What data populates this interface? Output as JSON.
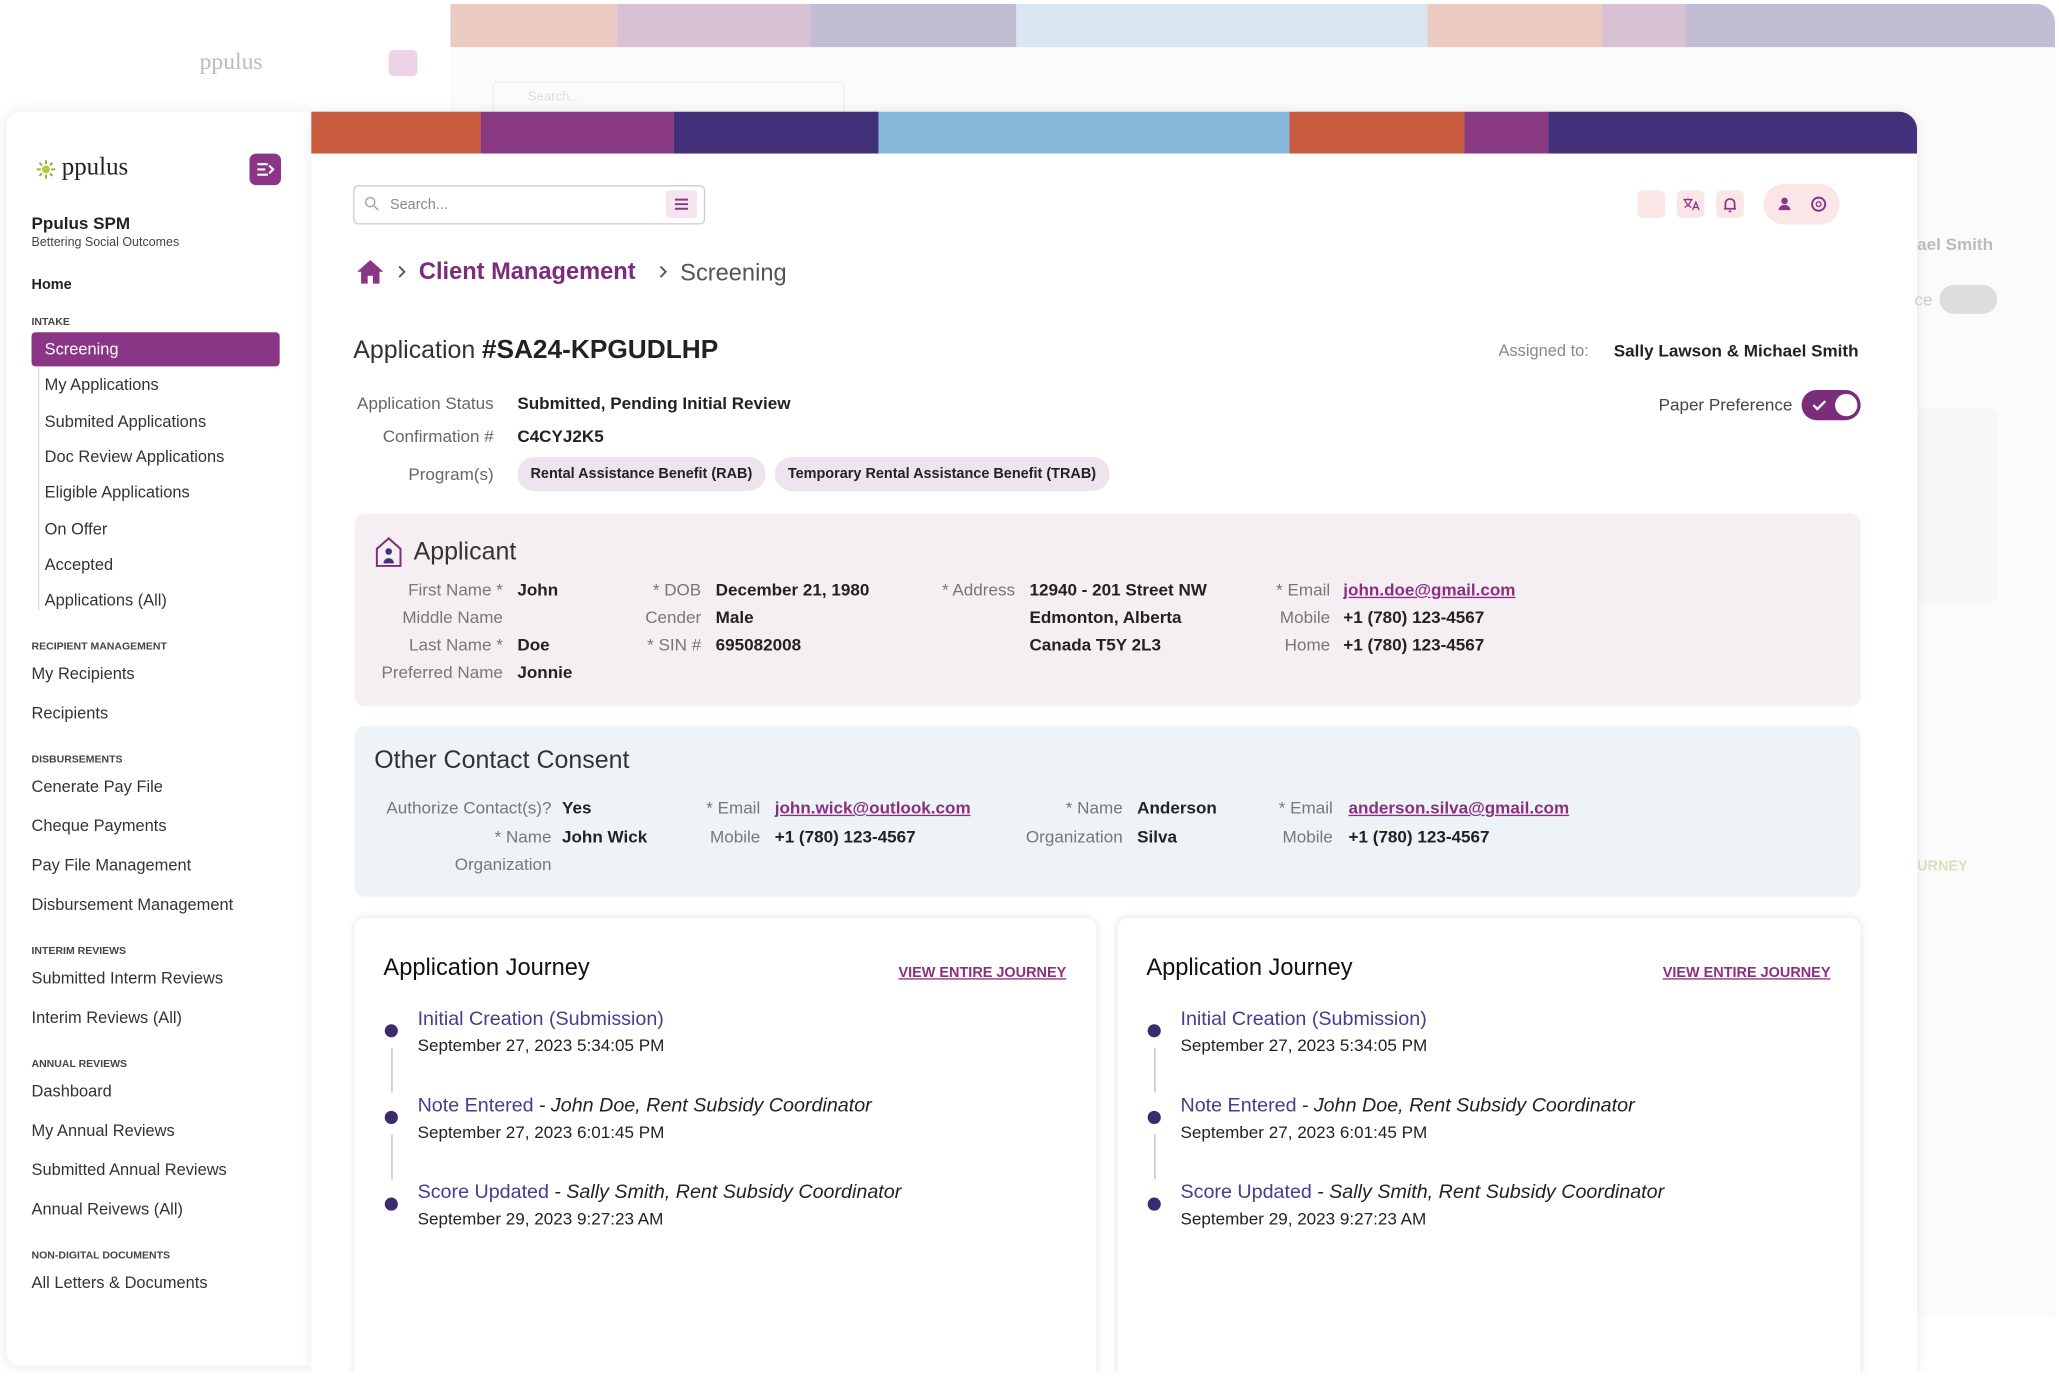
{
  "background": {
    "logo": "ppulus",
    "search": "Search...",
    "assigned_partial": "ael Smith",
    "consent_partial": "ce",
    "journey_partial": "URNEY"
  },
  "sidebar": {
    "logo": "ppulus",
    "org": "Ppulus SPM",
    "tagline": "Bettering Social Outcomes",
    "home": "Home",
    "sections": [
      {
        "title": "INTAKE",
        "items": [
          "Screening",
          "My Applications",
          "Submited Applications",
          "Doc Review Applications",
          "Eligible Applications",
          "On Offer",
          "Accepted",
          "Applications (All)"
        ]
      },
      {
        "title": "RECIPIENT MANAGEMENT",
        "items": [
          "My Recipients",
          "Recipients"
        ]
      },
      {
        "title": "DISBURSEMENTS",
        "items": [
          "Cenerate Pay File",
          "Cheque Payments",
          "Pay File Management",
          "Disbursement Management"
        ]
      },
      {
        "title": "INTERIM REVIEWS",
        "items": [
          "Submitted Interm Reviews",
          "Interim Reviews (All)"
        ]
      },
      {
        "title": "ANNUAL REVIEWS",
        "items": [
          "Dashboard",
          "My Annual Reviews",
          "Submitted Annual Reviews",
          "Annual Reivews (All)"
        ]
      },
      {
        "title": "NON-DIGITAL DOCUMENTS",
        "items": [
          "All Letters & Documents"
        ]
      }
    ]
  },
  "header": {
    "search": "Search..."
  },
  "breadcrumb": [
    "Client Management",
    "Screening"
  ],
  "application": {
    "label": "Application",
    "number": "#SA24-KPGUDLHP",
    "assigned_label": "Assigned to:",
    "assigned": "Sally Lawson & Michael Smith",
    "fields": [
      {
        "label": "Application Status",
        "value": "Submitted, Pending Initial Review"
      },
      {
        "label": "Confirmation #",
        "value": "C4CYJ2K5"
      }
    ],
    "programs_label": "Program(s)",
    "programs": [
      "Rental Assistance Benefit (RAB)",
      "Temporary Rental Assistance Benefit (TRAB)"
    ],
    "paper_preference": "Paper Preference"
  },
  "applicant": {
    "title": "Applicant",
    "columns": [
      [
        {
          "label": "First Name *",
          "value": "John"
        },
        {
          "label": "Middle Name"
        },
        {
          "label": "Last Name *",
          "value": "Doe"
        },
        {
          "label": "Preferred Name",
          "value": "Jonnie"
        }
      ],
      [
        {
          "label": "* DOB",
          "value": "December 21, 1980"
        },
        {
          "label": "Cender",
          "value": "Male"
        },
        {
          "label": "* SIN #",
          "value": "695082008"
        }
      ],
      [
        {
          "label": "* Address",
          "value": "12940 - 201 Street NW"
        },
        {
          "value": "Edmonton, Alberta"
        },
        {
          "value": "Canada T5Y 2L3"
        }
      ],
      [
        {
          "label": "* Email",
          "value": "john.doe@gmail.com"
        },
        {
          "label": "Mobile",
          "value": "+1 (780) 123-4567"
        },
        {
          "label": "Home",
          "value": "+1 (780) 123-4567"
        }
      ]
    ]
  },
  "consent": {
    "title": "Other Contact Consent",
    "columns": [
      [
        {
          "label": "Authorize Contact(s)?",
          "value": "Yes"
        },
        {
          "label": "* Name",
          "value": "John Wick"
        },
        {
          "label": "Organization"
        }
      ],
      [
        {
          "label": "* Email",
          "value": "john.wick@outlook.com"
        },
        {
          "label": "Mobile",
          "value": "+1 (780) 123-4567"
        }
      ],
      [
        {
          "label": "* Name",
          "value": "Anderson"
        },
        {
          "label": "Organization",
          "value": "Silva"
        }
      ],
      [
        {
          "label": "* Email",
          "value": "anderson.silva@gmail.com"
        },
        {
          "label": "Mobile",
          "value": "+1 (780) 123-4567"
        }
      ]
    ]
  },
  "journeys": [
    {
      "title": "Application Journey",
      "link": "VIEW ENTIRE JOURNEY",
      "events": [
        {
          "event": "Initial Creation (Submission)",
          "date": "September 27, 2023 5:34:05 PM"
        },
        {
          "event": "Note Entered",
          "detail": "- John Doe, Rent Subsidy Coordinator",
          "date": "September 27, 2023 6:01:45 PM"
        },
        {
          "event": "Score Updated",
          "detail": "- Sally Smith, Rent Subsidy Coordinator",
          "date": "September 29, 2023 9:27:23 AM"
        }
      ]
    },
    {
      "title": "Application Journey",
      "link": "VIEW ENTIRE JOURNEY",
      "events": [
        {
          "event": "Initial Creation (Submission)",
          "date": "September 27, 2023 5:34:05 PM"
        },
        {
          "event": "Note Entered",
          "detail": "- John Doe, Rent Subsidy Coordinator",
          "date": "September 27, 2023 6:01:45 PM"
        },
        {
          "event": "Score Updated",
          "detail": "- Sally Smith, Rent Subsidy Coordinator",
          "date": "September 29, 2023 9:27:23 AM"
        }
      ]
    }
  ]
}
